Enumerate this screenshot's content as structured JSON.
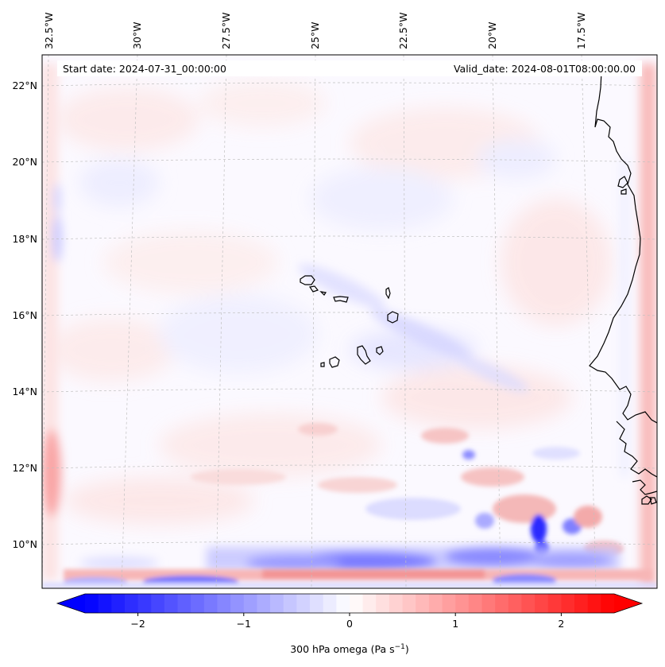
{
  "map": {
    "start_date": "Start date: 2024-07-31_00:00:00",
    "valid_date": "Valid_date: 2024-08-01T08:00:00.00",
    "lon_labels": [
      "32.5°W",
      "30°W",
      "27.5°W",
      "25°W",
      "22.5°W",
      "20°W",
      "17.5°W"
    ],
    "lat_labels": [
      "22°N",
      "20°N",
      "18°N",
      "16°N",
      "14°N",
      "12°N",
      "10°N"
    ]
  },
  "colorbar": {
    "title": "300 hPa omega (Pa s",
    "title_sup": "−1",
    "title_end": ")",
    "ticks": [
      "−2",
      "−1",
      "0",
      "1",
      "2"
    ],
    "tick_values": [
      -2,
      -1,
      0,
      1,
      2
    ],
    "vmin": -2.5,
    "vmax": 2.5,
    "levels": 40
  },
  "colors": {
    "negative": "#0000ff",
    "neutral": "#ffffff",
    "positive": "#ff0000",
    "coastline": "#000000",
    "gridline": "#b8b8b8"
  }
}
